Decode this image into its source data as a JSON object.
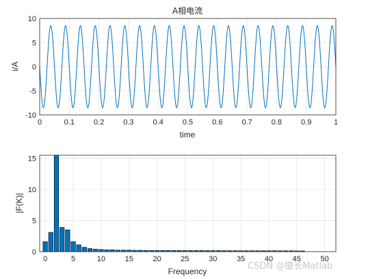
{
  "chart_data": [
    {
      "type": "line",
      "title": "A相电流",
      "xlabel": "time",
      "ylabel": "i/A",
      "xlim": [
        0,
        1
      ],
      "ylim": [
        -10,
        10
      ],
      "xticks": [
        "0",
        "0.1",
        "0.2",
        "0.3",
        "0.4",
        "0.5",
        "0.6",
        "0.7",
        "0.8",
        "0.9",
        "1"
      ],
      "yticks": [
        "-10",
        "-5",
        "0",
        "5",
        "10"
      ],
      "grid": true,
      "series": [
        {
          "signal": "sinusoid",
          "frequency_hz": 20,
          "amplitude": 8.5,
          "color": "#0072BD"
        }
      ]
    },
    {
      "type": "bar",
      "title": "",
      "xlabel": "Frequency",
      "ylabel": "|F(K)|",
      "xlim": [
        -1,
        52
      ],
      "ylim": [
        0,
        15.5
      ],
      "xticks": [
        "0",
        "5",
        "10",
        "15",
        "20",
        "25",
        "30",
        "35",
        "40",
        "45",
        "50"
      ],
      "yticks": [
        "0",
        "5",
        "10",
        "15"
      ],
      "grid": true,
      "bar_color": "#0072BD",
      "categories": [
        0,
        1,
        2,
        3,
        4,
        5,
        6,
        7,
        8,
        9,
        10,
        11,
        12,
        13,
        14,
        15,
        16,
        17,
        18,
        19,
        20,
        21,
        22,
        23,
        24,
        25,
        26,
        27,
        28,
        29,
        30,
        31,
        32,
        33,
        34,
        35,
        36,
        37,
        38,
        39,
        40,
        41,
        42,
        43,
        44,
        45,
        46,
        47,
        48,
        49,
        50
      ],
      "values": [
        1.6,
        3.1,
        15.5,
        3.9,
        3.5,
        1.6,
        1.1,
        0.7,
        0.5,
        0.4,
        0.35,
        0.3,
        0.3,
        0.25,
        0.25,
        0.25,
        0.22,
        0.22,
        0.2,
        0.2,
        0.2,
        0.2,
        0.2,
        0.2,
        0.18,
        0.18,
        0.18,
        0.18,
        0.18,
        0.17,
        0.17,
        0.17,
        0.16,
        0.16,
        0.16,
        0.15,
        0.15,
        0.15,
        0.15,
        0.15,
        0.15,
        0.15,
        0.14,
        0.14,
        0.14,
        0.12,
        0.12,
        0.0,
        0.0,
        0.0,
        0.0
      ]
    }
  ],
  "watermark": "CSDN @擅长Matlab"
}
